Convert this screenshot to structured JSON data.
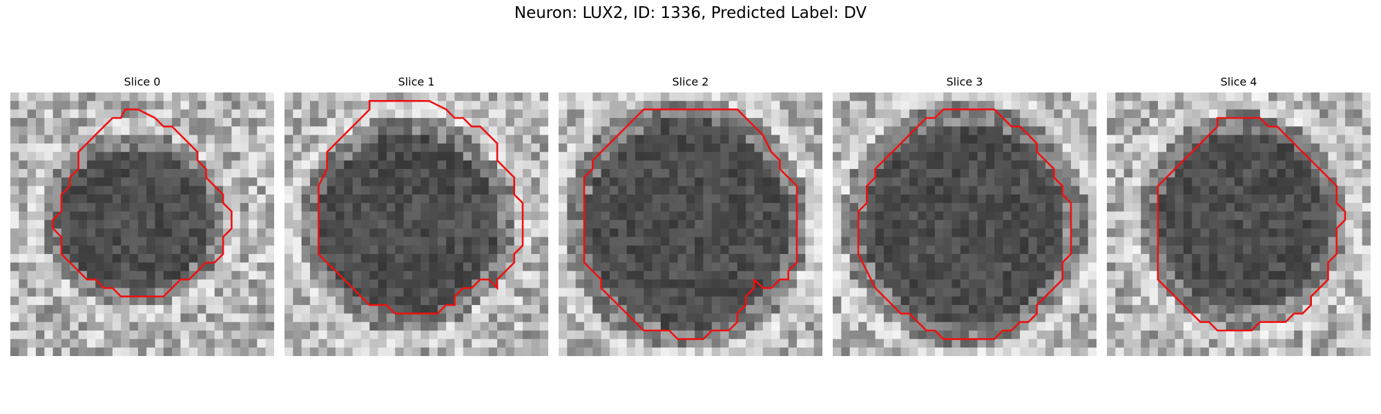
{
  "figure": {
    "title": "Neuron: LUX2, ID: 1336, Predicted Label: DV"
  },
  "slices": [
    {
      "title": "Slice 0"
    },
    {
      "title": "Slice 1"
    },
    {
      "title": "Slice 2"
    },
    {
      "title": "Slice 3"
    },
    {
      "title": "Slice 4"
    }
  ],
  "contour_color": "#ee1111"
}
